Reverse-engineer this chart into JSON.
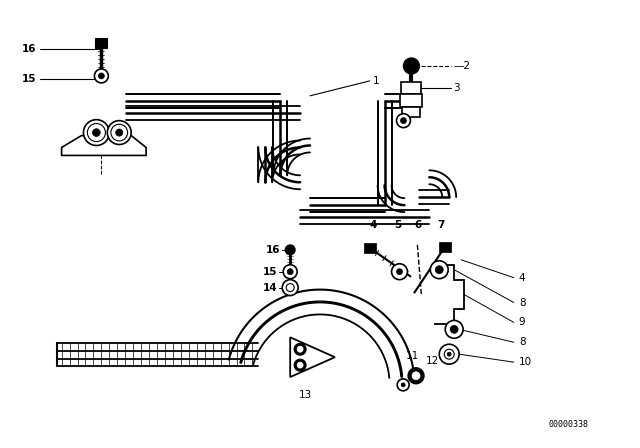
{
  "bg_color": "#ffffff",
  "line_color": "#000000",
  "fig_width": 6.4,
  "fig_height": 4.48,
  "dpi": 100,
  "part_number_text": "00000338",
  "part_number_fontsize": 6,
  "label_fontsize": 7.5
}
